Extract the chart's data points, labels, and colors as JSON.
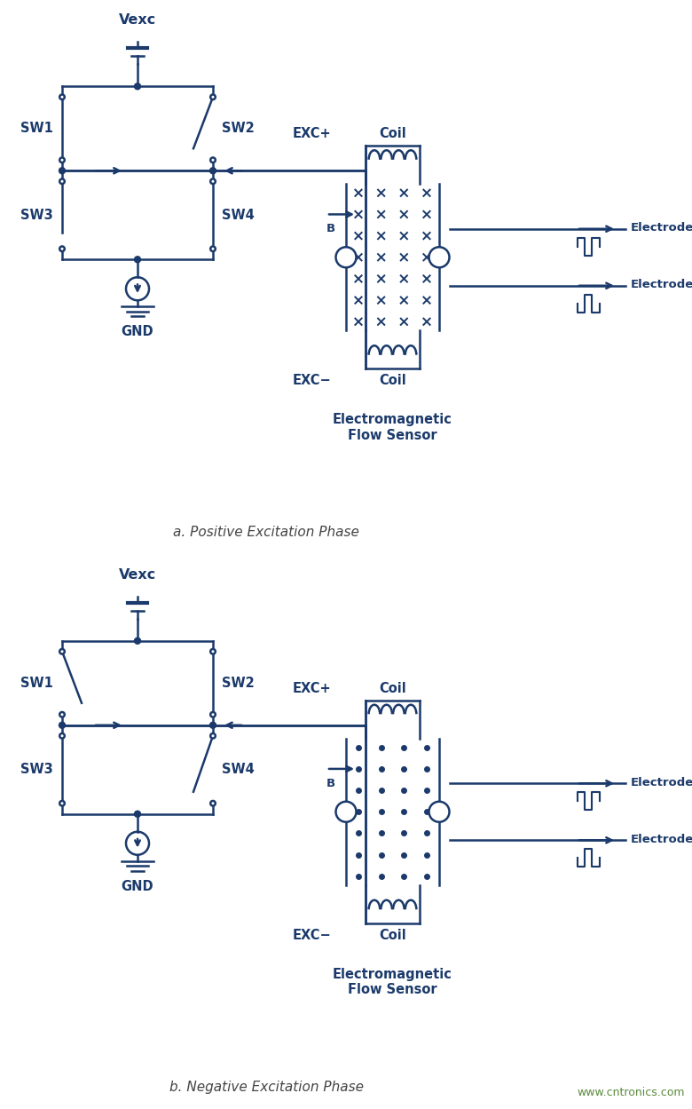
{
  "color": "#1b3a6b",
  "bg_color": "#ffffff",
  "title_a": "a. Positive Excitation Phase",
  "title_b": "b. Negative Excitation Phase",
  "watermark": "www.cntronics.com",
  "fig_width": 7.8,
  "fig_height": 12.49,
  "lw": 1.8
}
